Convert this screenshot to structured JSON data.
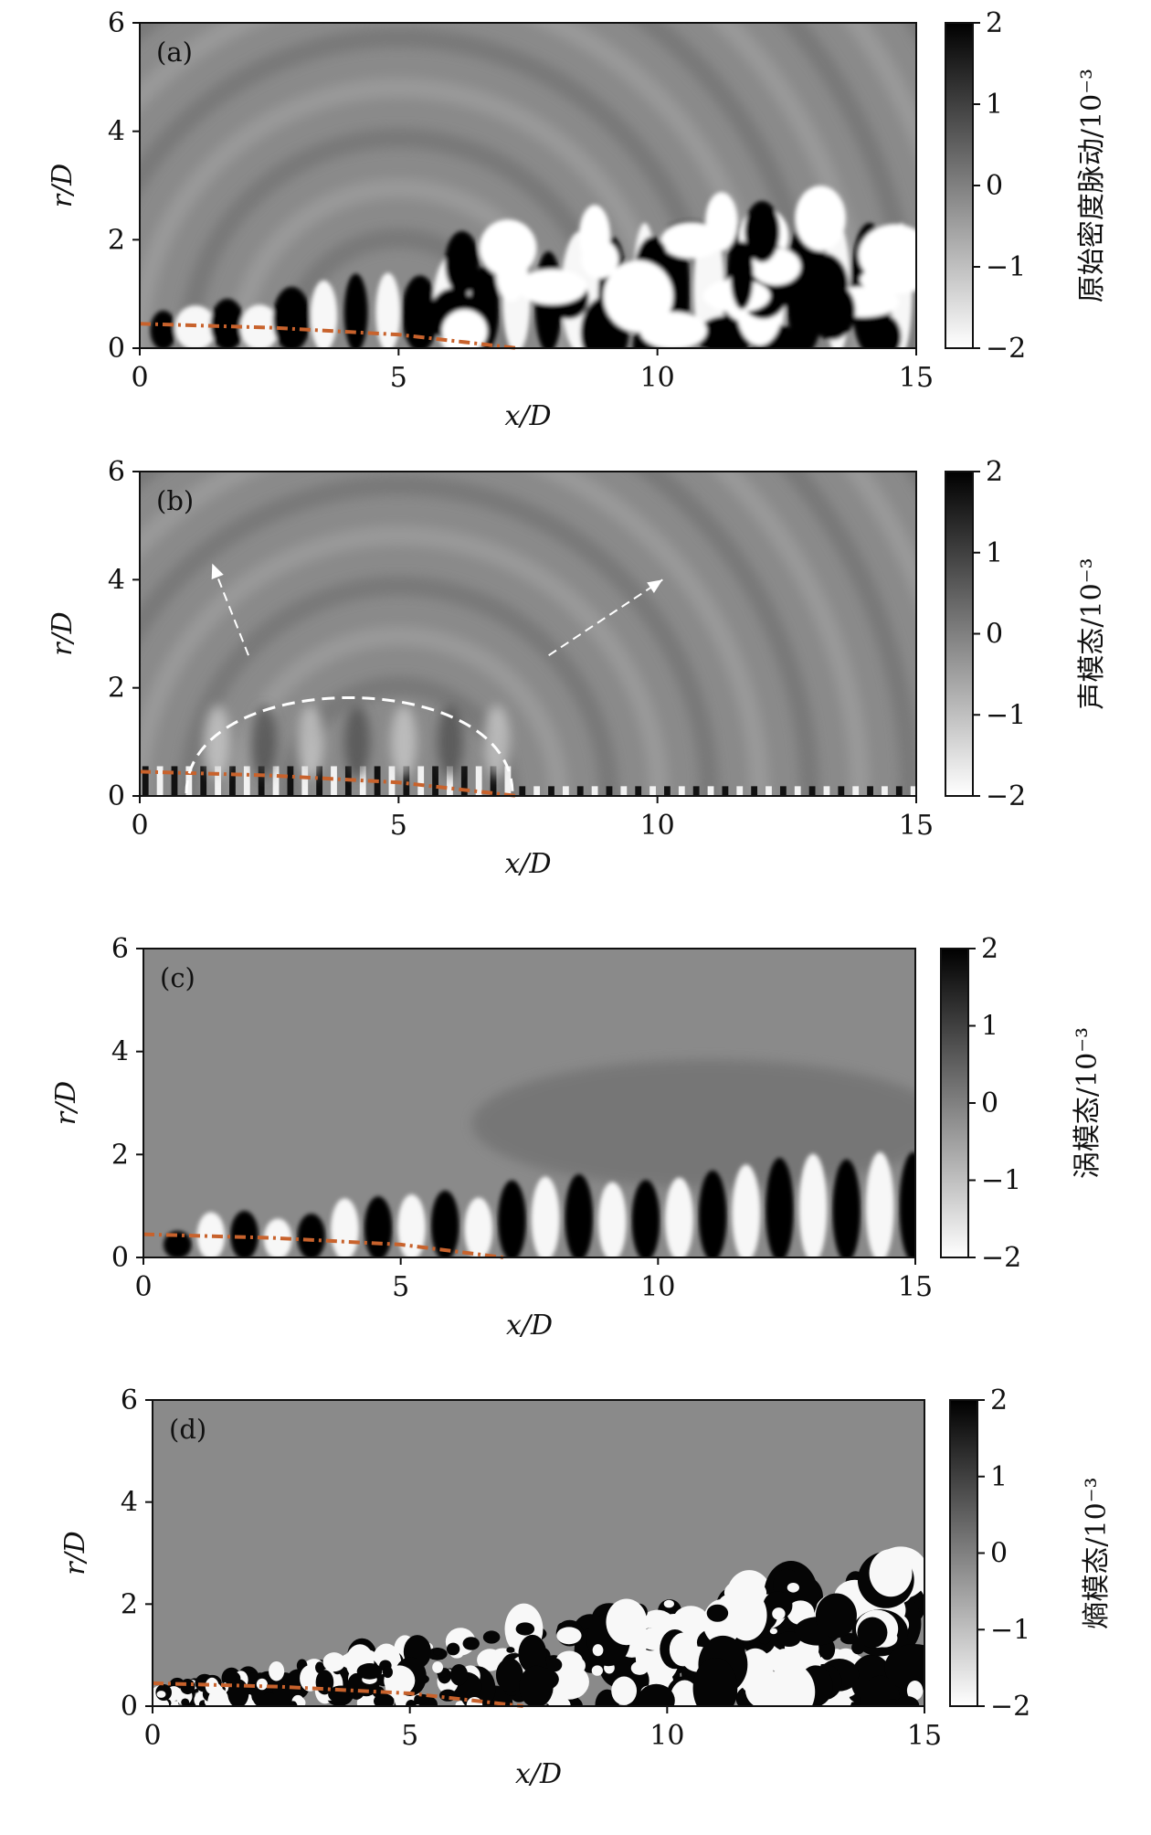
{
  "chart_data": [
    {
      "type": "heatmap",
      "panel_label": "(a)",
      "xlabel": "x/D",
      "ylabel": "r/D",
      "xlim": [
        0,
        15
      ],
      "ylim": [
        0,
        6
      ],
      "xticks": [
        "0",
        "5",
        "10",
        "15"
      ],
      "yticks": [
        "0",
        "2",
        "4",
        "6"
      ],
      "colorbar": {
        "label": "原始密度脉动/10⁻³",
        "range": [
          -2,
          2
        ],
        "ticks": [
          "2",
          "1",
          "0",
          "−1",
          "−2"
        ]
      },
      "colormap": "gray_r",
      "potential_core_line": {
        "color": "#c8622c",
        "style": "dash-dot",
        "points": [
          [
            0,
            0.45
          ],
          [
            2.5,
            0.38
          ],
          [
            5,
            0.25
          ],
          [
            7.3,
            0.0
          ]
        ]
      }
    },
    {
      "type": "heatmap",
      "panel_label": "(b)",
      "xlabel": "x/D",
      "ylabel": "r/D",
      "xlim": [
        0,
        15
      ],
      "ylim": [
        0,
        6
      ],
      "xticks": [
        "0",
        "5",
        "10",
        "15"
      ],
      "yticks": [
        "0",
        "2",
        "4",
        "6"
      ],
      "colorbar": {
        "label": "声模态/10⁻³",
        "range": [
          -2,
          2
        ],
        "ticks": [
          "2",
          "1",
          "0",
          "−1",
          "−2"
        ]
      },
      "colormap": "gray_r",
      "potential_core_line": {
        "color": "#c8622c",
        "style": "dash-dot",
        "points": [
          [
            0,
            0.45
          ],
          [
            2.5,
            0.38
          ],
          [
            5,
            0.25
          ],
          [
            7.3,
            0.0
          ]
        ]
      },
      "annotations": [
        {
          "type": "dashed-arrow",
          "color": "#ffffff",
          "from": [
            2.1,
            2.6
          ],
          "to": [
            1.4,
            4.3
          ]
        },
        {
          "type": "dashed-arrow",
          "color": "#ffffff",
          "from": [
            7.9,
            2.6
          ],
          "to": [
            10.1,
            4.0
          ]
        },
        {
          "type": "dashed-ellipse",
          "color": "#ffffff",
          "x_range": [
            0.9,
            7.2
          ],
          "top": 1.9
        }
      ]
    },
    {
      "type": "heatmap",
      "panel_label": "(c)",
      "xlabel": "x/D",
      "ylabel": "r/D",
      "xlim": [
        0,
        15
      ],
      "ylim": [
        0,
        6
      ],
      "xticks": [
        "0",
        "5",
        "10",
        "15"
      ],
      "yticks": [
        "0",
        "2",
        "4",
        "6"
      ],
      "colorbar": {
        "label": "涡模态/10⁻³",
        "range": [
          -2,
          2
        ],
        "ticks": [
          "2",
          "1",
          "0",
          "−1",
          "−2"
        ]
      },
      "colormap": "gray_r",
      "potential_core_line": {
        "color": "#c8622c",
        "style": "dash-dot",
        "points": [
          [
            0,
            0.45
          ],
          [
            2.5,
            0.38
          ],
          [
            5,
            0.25
          ],
          [
            7.0,
            0.0
          ]
        ]
      }
    },
    {
      "type": "heatmap",
      "panel_label": "(d)",
      "xlabel": "x/D",
      "ylabel": "r/D",
      "xlim": [
        0,
        15
      ],
      "ylim": [
        0,
        6
      ],
      "xticks": [
        "0",
        "5",
        "10",
        "15"
      ],
      "yticks": [
        "0",
        "2",
        "4",
        "6"
      ],
      "colorbar": {
        "label": "熵模态/10⁻³",
        "range": [
          -2,
          2
        ],
        "ticks": [
          "2",
          "1",
          "0",
          "−1",
          "−2"
        ]
      },
      "colormap": "gray_r",
      "potential_core_line": {
        "color": "#c8622c",
        "style": "dash-dot",
        "points": [
          [
            0,
            0.45
          ],
          [
            2.5,
            0.38
          ],
          [
            5,
            0.25
          ],
          [
            7.2,
            0.0
          ]
        ]
      }
    }
  ]
}
